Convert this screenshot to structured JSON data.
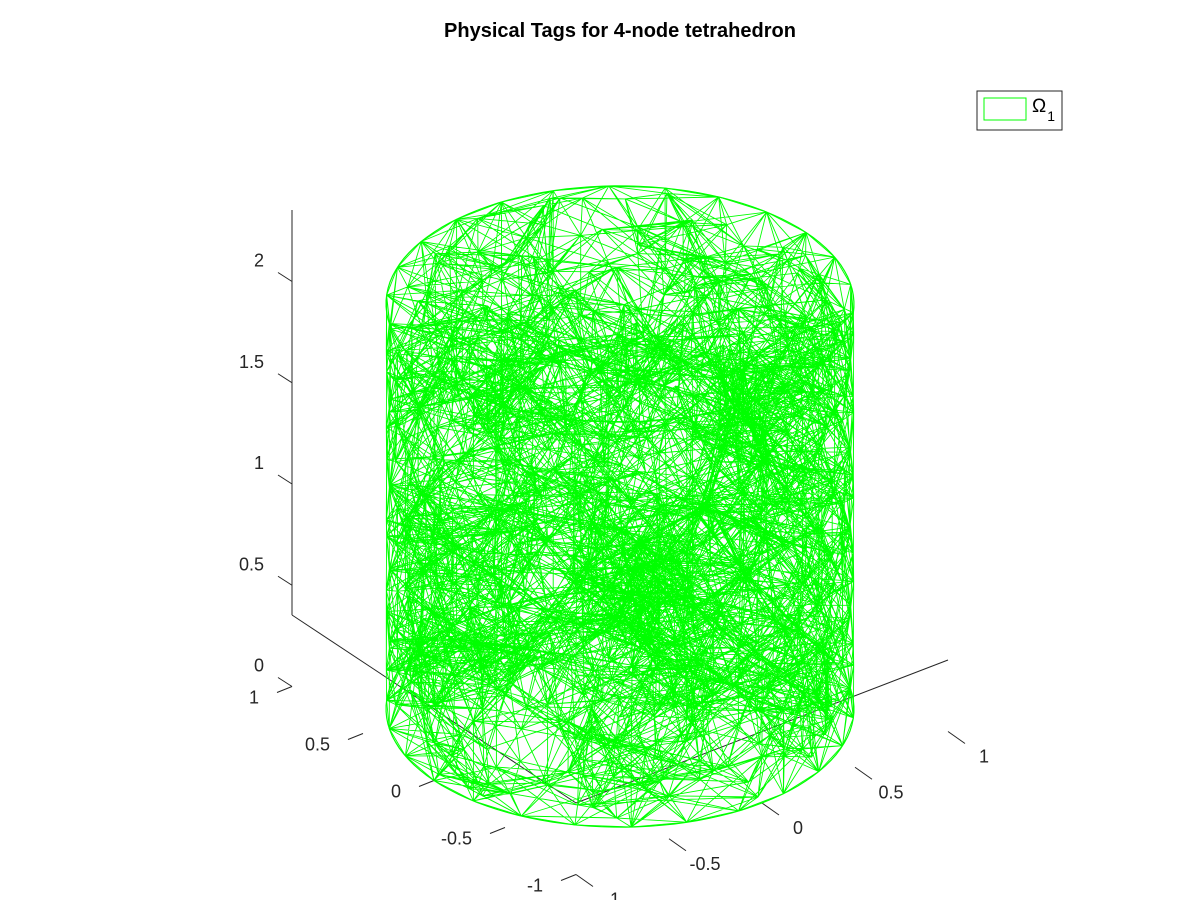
{
  "chart_data": {
    "type": "mesh3d",
    "title": "Physical Tags for 4-node tetrahedron",
    "xlabel": "",
    "ylabel": "",
    "zlabel": "",
    "xlim": [
      -1,
      1
    ],
    "ylim": [
      -1,
      1
    ],
    "zlim": [
      0,
      2
    ],
    "x_ticks": [
      "-1",
      "-0.5",
      "0",
      "0.5",
      "1"
    ],
    "y_ticks": [
      "-1",
      "-0.5",
      "0",
      "0.5",
      "1"
    ],
    "z_ticks": [
      "0",
      "0.5",
      "1",
      "1.5",
      "2"
    ],
    "grid": false,
    "legend_position": "top-right",
    "series": [
      {
        "name": "Ω",
        "subscript": "1",
        "color": "#00ff00",
        "geometry": "cylinder",
        "radius": 1,
        "height": 2,
        "element": "4-node tetrahedron"
      }
    ]
  }
}
